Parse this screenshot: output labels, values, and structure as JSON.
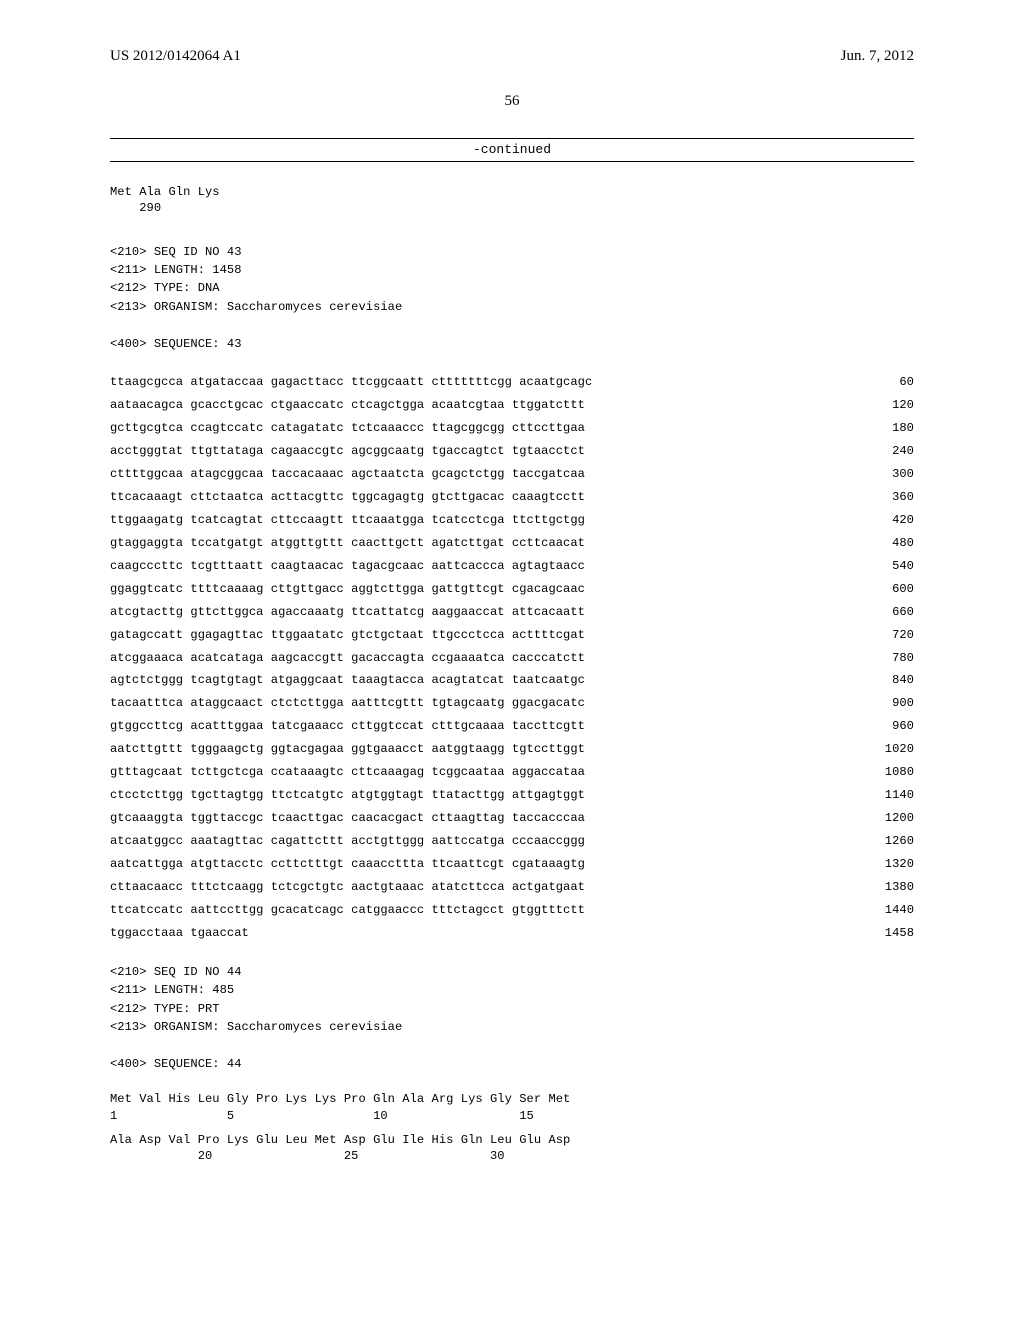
{
  "header": {
    "left": "US 2012/0142064 A1",
    "right": "Jun. 7, 2012"
  },
  "page_number": "56",
  "continued_label": "-continued",
  "top_protein": {
    "residues": "Met Ala Gln Lys",
    "numbers": "    290"
  },
  "seq43_meta": [
    "<210> SEQ ID NO 43",
    "<211> LENGTH: 1458",
    "<212> TYPE: DNA",
    "<213> ORGANISM: Saccharomyces cerevisiae",
    "",
    "<400> SEQUENCE: 43"
  ],
  "dna_lines": [
    {
      "seq": "ttaagcgcca atgataccaa gagacttacc ttcggcaatt ctttttttcgg acaatgcagc",
      "pos": "60"
    },
    {
      "seq": "aataacagca gcacctgcac ctgaaccatc ctcagctgga acaatcgtaa ttggatcttt",
      "pos": "120"
    },
    {
      "seq": "gcttgcgtca ccagtccatc catagatatc tctcaaaccc ttagcggcgg cttccttgaa",
      "pos": "180"
    },
    {
      "seq": "acctgggtat ttgttataga cagaaccgtc agcggcaatg tgaccagtct tgtaacctct",
      "pos": "240"
    },
    {
      "seq": "cttttggcaa atagcggcaa taccacaaac agctaatcta gcagctctgg taccgatcaa",
      "pos": "300"
    },
    {
      "seq": "ttcacaaagt cttctaatca acttacgttc tggcagagtg gtcttgacac caaagtcctt",
      "pos": "360"
    },
    {
      "seq": "ttggaagatg tcatcagtat cttccaagtt ttcaaatgga tcatcctcga ttcttgctgg",
      "pos": "420"
    },
    {
      "seq": "gtaggaggta tccatgatgt atggttgttt caacttgctt agatcttgat ccttcaacat",
      "pos": "480"
    },
    {
      "seq": "caagcccttc tcgtttaatt caagtaacac tagacgcaac aattcaccca agtagtaacc",
      "pos": "540"
    },
    {
      "seq": "ggaggtcatc ttttcaaaag cttgttgacc aggtcttgga gattgttcgt cgacagcaac",
      "pos": "600"
    },
    {
      "seq": "atcgtacttg gttcttggca agaccaaatg ttcattatcg aaggaaccat attcacaatt",
      "pos": "660"
    },
    {
      "seq": "gatagccatt ggagagttac ttggaatatc gtctgctaat ttgccctcca acttttcgat",
      "pos": "720"
    },
    {
      "seq": "atcggaaaca acatcataga aagcaccgtt gacaccagta ccgaaaatca cacccatctt",
      "pos": "780"
    },
    {
      "seq": "agtctctggg tcagtgtagt atgaggcaat taaagtacca acagtatcat taatcaatgc",
      "pos": "840"
    },
    {
      "seq": "tacaatttca ataggcaact ctctcttgga aatttcgttt tgtagcaatg ggacgacatc",
      "pos": "900"
    },
    {
      "seq": "gtggccttcg acatttggaa tatcgaaacc cttggtccat ctttgcaaaa taccttcgtt",
      "pos": "960"
    },
    {
      "seq": "aatcttgttt tgggaagctg ggtacgagaa ggtgaaacct aatggtaagg tgtccttggt",
      "pos": "1020"
    },
    {
      "seq": "gtttagcaat tcttgctcga ccataaagtc cttcaaagag tcggcaataa aggaccataa",
      "pos": "1080"
    },
    {
      "seq": "ctcctcttgg tgcttagtgg ttctcatgtc atgtggtagt ttatacttgg attgagtggt",
      "pos": "1140"
    },
    {
      "seq": "gtcaaaggta tggttaccgc tcaacttgac caacacgact cttaagttag taccacccaa",
      "pos": "1200"
    },
    {
      "seq": "atcaatggcc aaatagttac cagattcttt acctgttggg aattccatga cccaaccggg",
      "pos": "1260"
    },
    {
      "seq": "aatcattgga atgttacctc ccttctttgt caaaccttta ttcaattcgt cgataaagtg",
      "pos": "1320"
    },
    {
      "seq": "cttaacaacc tttctcaagg tctcgctgtc aactgtaaac atatcttcca actgatgaat",
      "pos": "1380"
    },
    {
      "seq": "ttcatccatc aattccttgg gcacatcagc catggaaccc tttctagcct gtggtttctt",
      "pos": "1440"
    },
    {
      "seq": "tggacctaaa tgaaccat",
      "pos": "1458"
    }
  ],
  "seq44_meta": [
    "<210> SEQ ID NO 44",
    "<211> LENGTH: 485",
    "<212> TYPE: PRT",
    "<213> ORGANISM: Saccharomyces cerevisiae",
    "",
    "<400> SEQUENCE: 44"
  ],
  "protein_lines": [
    {
      "res": "Met Val His Leu Gly Pro Lys Lys Pro Gln Ala Arg Lys Gly Ser Met",
      "num": "1               5                   10                  15"
    },
    {
      "res": "Ala Asp Val Pro Lys Glu Leu Met Asp Glu Ile His Gln Leu Glu Asp",
      "num": "            20                  25                  30"
    }
  ]
}
